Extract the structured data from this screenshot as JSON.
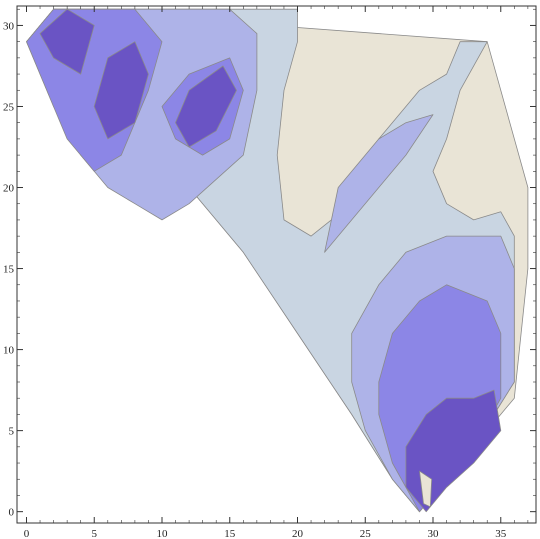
{
  "chart_data": {
    "type": "contour",
    "title": "",
    "xlabel": "",
    "ylabel": "",
    "xlim": [
      -0.7,
      37.6
    ],
    "ylim": [
      -0.7,
      31.2
    ],
    "x_ticks": [
      0,
      5,
      10,
      15,
      20,
      25,
      30,
      35
    ],
    "y_ticks": [
      0,
      5,
      10,
      15,
      20,
      25,
      30
    ],
    "grid": false,
    "legend": "none",
    "levels": [
      {
        "color": "#e9e4d6",
        "polygon": [
          [
            2,
            31
          ],
          [
            34,
            29
          ],
          [
            37,
            20
          ],
          [
            37,
            15
          ],
          [
            36,
            7
          ],
          [
            33,
            4
          ],
          [
            30,
            1
          ],
          [
            29,
            0
          ],
          [
            27,
            2
          ],
          [
            24,
            6
          ],
          [
            20,
            11
          ],
          [
            16,
            16
          ],
          [
            12,
            20
          ],
          [
            7,
            24
          ],
          [
            3,
            27
          ],
          [
            0,
            29
          ],
          [
            2,
            31
          ]
        ]
      },
      {
        "color": "#c9d5e2",
        "polygon": [
          [
            2,
            31
          ],
          [
            20,
            31
          ],
          [
            20,
            29
          ],
          [
            19,
            26
          ],
          [
            18.5,
            22
          ],
          [
            19,
            18
          ],
          [
            21,
            17
          ],
          [
            24,
            19
          ],
          [
            26,
            23
          ],
          [
            29,
            26
          ],
          [
            31,
            27
          ],
          [
            32,
            29
          ],
          [
            34,
            29
          ],
          [
            32,
            26
          ],
          [
            31,
            23
          ],
          [
            30,
            21
          ],
          [
            31,
            19
          ],
          [
            33,
            18
          ],
          [
            35,
            18.5
          ],
          [
            36,
            17
          ],
          [
            36,
            13
          ],
          [
            36,
            8
          ],
          [
            33,
            4
          ],
          [
            30,
            1
          ],
          [
            29,
            0
          ],
          [
            27,
            2
          ],
          [
            24,
            6
          ],
          [
            20,
            11
          ],
          [
            16,
            16
          ],
          [
            12,
            20
          ],
          [
            7,
            24
          ],
          [
            3,
            27
          ],
          [
            0,
            29
          ],
          [
            2,
            31
          ]
        ]
      },
      {
        "color": "#aeb3e8",
        "polygon": [
          [
            2,
            31
          ],
          [
            15,
            31
          ],
          [
            17,
            29.5
          ],
          [
            17,
            26
          ],
          [
            16,
            22
          ],
          [
            12,
            19
          ],
          [
            10,
            18
          ],
          [
            8,
            19
          ],
          [
            6,
            20
          ],
          [
            4,
            22
          ],
          [
            2,
            25
          ],
          [
            0,
            29
          ],
          [
            2,
            31
          ]
        ]
      },
      {
        "color": "#aeb3e8",
        "polygon": [
          [
            23,
            20
          ],
          [
            26,
            23
          ],
          [
            28,
            24
          ],
          [
            30,
            24.5
          ],
          [
            28,
            22
          ],
          [
            26,
            20
          ],
          [
            24,
            18
          ],
          [
            22,
            16
          ],
          [
            23,
            20
          ]
        ]
      },
      {
        "color": "#aeb3e8",
        "polygon": [
          [
            24,
            11
          ],
          [
            26,
            14
          ],
          [
            28,
            16
          ],
          [
            31,
            17
          ],
          [
            35,
            17
          ],
          [
            36,
            15
          ],
          [
            36,
            8
          ],
          [
            33,
            4
          ],
          [
            30,
            1
          ],
          [
            29,
            0
          ],
          [
            27,
            2
          ],
          [
            25,
            5
          ],
          [
            24,
            8
          ],
          [
            24,
            11
          ]
        ]
      },
      {
        "color": "#8c86e6",
        "polygon": [
          [
            2,
            31
          ],
          [
            8,
            31
          ],
          [
            10,
            29
          ],
          [
            9,
            26
          ],
          [
            7,
            22
          ],
          [
            5,
            21
          ],
          [
            3,
            23
          ],
          [
            1,
            27
          ],
          [
            0,
            29
          ],
          [
            2,
            31
          ]
        ]
      },
      {
        "color": "#8c86e6",
        "polygon": [
          [
            12,
            27
          ],
          [
            15,
            28
          ],
          [
            16,
            26
          ],
          [
            15,
            23
          ],
          [
            13,
            22
          ],
          [
            11,
            23
          ],
          [
            10,
            25
          ],
          [
            12,
            27
          ]
        ]
      },
      {
        "color": "#8c86e6",
        "polygon": [
          [
            26,
            8
          ],
          [
            27,
            11
          ],
          [
            29,
            13
          ],
          [
            31,
            14
          ],
          [
            34,
            13
          ],
          [
            35,
            11
          ],
          [
            35,
            7
          ],
          [
            33,
            4
          ],
          [
            30,
            1
          ],
          [
            29,
            0
          ],
          [
            27,
            3
          ],
          [
            26,
            6
          ],
          [
            26,
            8
          ]
        ]
      },
      {
        "color": "#6a54c4",
        "polygon": [
          [
            1,
            29.5
          ],
          [
            3,
            31
          ],
          [
            5,
            30
          ],
          [
            4,
            27
          ],
          [
            2,
            28
          ],
          [
            1,
            29.5
          ]
        ]
      },
      {
        "color": "#6a54c4",
        "polygon": [
          [
            6,
            28
          ],
          [
            8,
            29
          ],
          [
            9,
            27
          ],
          [
            8,
            24
          ],
          [
            6,
            23
          ],
          [
            5,
            25
          ],
          [
            6,
            28
          ]
        ]
      },
      {
        "color": "#6a54c4",
        "polygon": [
          [
            12,
            26
          ],
          [
            14.5,
            27.5
          ],
          [
            15.5,
            26
          ],
          [
            14,
            23.5
          ],
          [
            12,
            22.5
          ],
          [
            11,
            24
          ],
          [
            12,
            26
          ]
        ]
      },
      {
        "color": "#6a54c4",
        "polygon": [
          [
            28,
            4
          ],
          [
            29.5,
            6
          ],
          [
            31,
            7
          ],
          [
            33,
            7
          ],
          [
            34.5,
            7.5
          ],
          [
            35,
            5
          ],
          [
            33,
            3
          ],
          [
            31,
            1.5
          ],
          [
            29.5,
            0
          ],
          [
            28,
            1.5
          ],
          [
            28,
            4
          ]
        ]
      },
      {
        "color": "#e9e4d6",
        "polygon": [
          [
            29,
            2.5
          ],
          [
            29.3,
            0.5
          ],
          [
            29.8,
            0.3
          ],
          [
            29.9,
            2
          ],
          [
            29,
            2.5
          ]
        ]
      }
    ]
  }
}
